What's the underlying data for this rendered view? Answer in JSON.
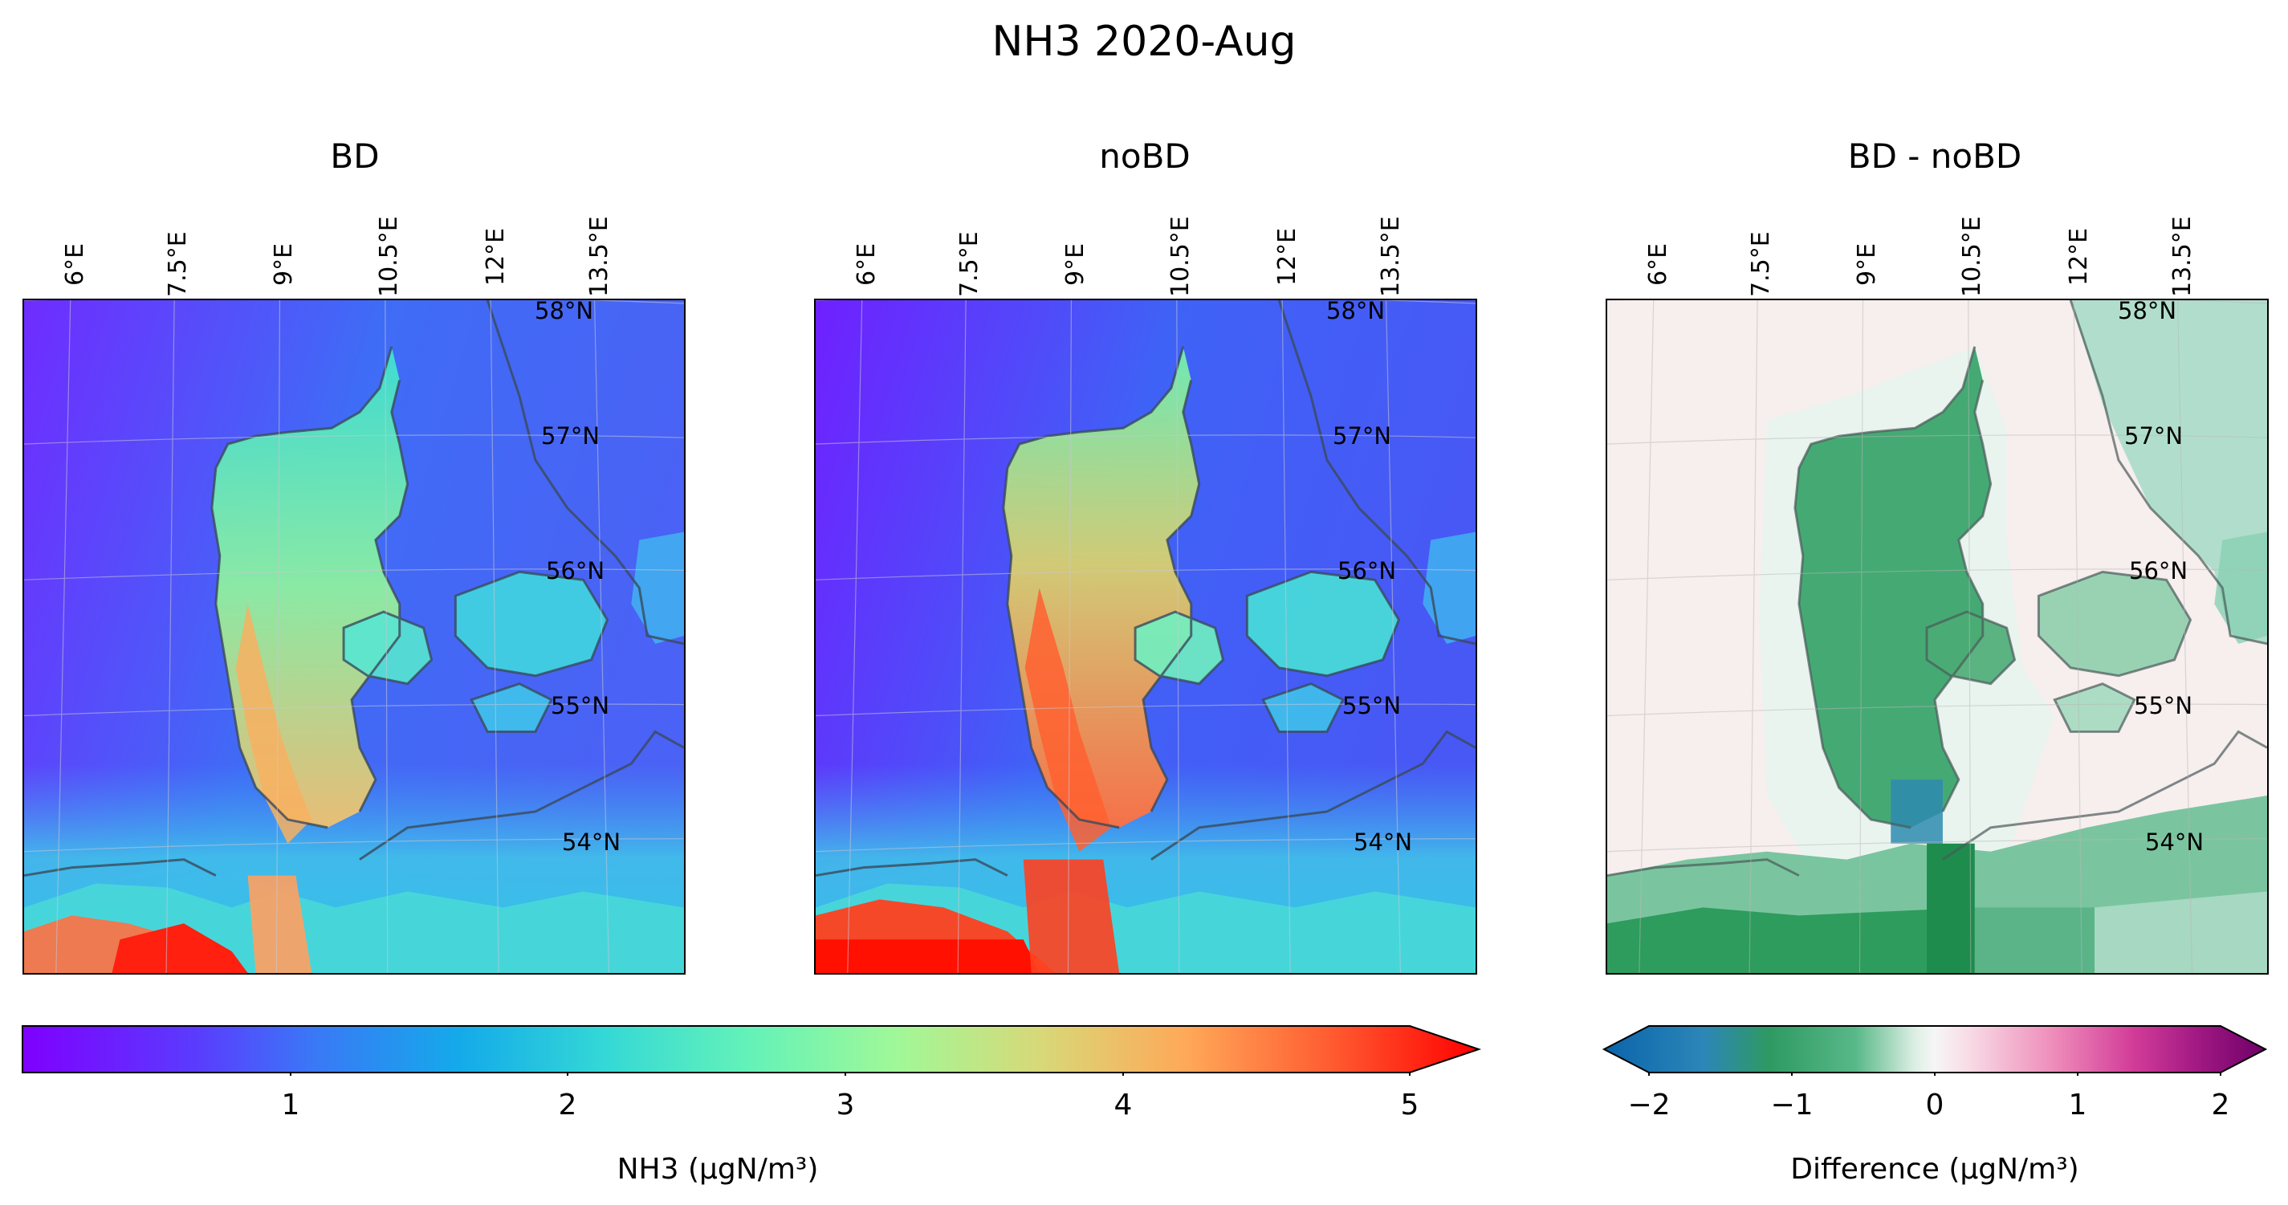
{
  "figure": {
    "title": "NH3 2020-Aug"
  },
  "panels": [
    {
      "title": "BD",
      "lon_labels": [
        "6°E",
        "7.5°E",
        "9°E",
        "10.5°E",
        "12°E",
        "13.5°E"
      ],
      "lat_labels": [
        "58°N",
        "57°N",
        "56°N",
        "55°N",
        "54°N"
      ]
    },
    {
      "title": "noBD",
      "lon_labels": [
        "6°E",
        "7.5°E",
        "9°E",
        "10.5°E",
        "12°E",
        "13.5°E"
      ],
      "lat_labels": [
        "58°N",
        "57°N",
        "56°N",
        "55°N",
        "54°N"
      ]
    },
    {
      "title": "BD - noBD",
      "lon_labels": [
        "6°E",
        "7.5°E",
        "9°E",
        "10.5°E",
        "12°E",
        "13.5°E"
      ],
      "lat_labels": [
        "58°N",
        "57°N",
        "56°N",
        "55°N",
        "54°N"
      ]
    }
  ],
  "colorbars": [
    {
      "colormap": "rainbow",
      "range": [
        0,
        5
      ],
      "extend": "max",
      "ticks": [
        "1",
        "2",
        "3",
        "4",
        "5"
      ],
      "label": "NH3 (μgN/m³)"
    },
    {
      "colormap": "diverging blue-green-white-pink-purple",
      "range": [
        -2,
        2
      ],
      "extend": "both",
      "ticks": [
        "−2",
        "−1",
        "0",
        "1",
        "2"
      ],
      "label": "Difference (μgN/m³)"
    }
  ],
  "colors": {
    "low": "#7a12ff",
    "mid": "#a0ff90",
    "high": "#ff1000",
    "diff_neg": "#1a8a4a",
    "diff_pos": "#e8508c"
  }
}
